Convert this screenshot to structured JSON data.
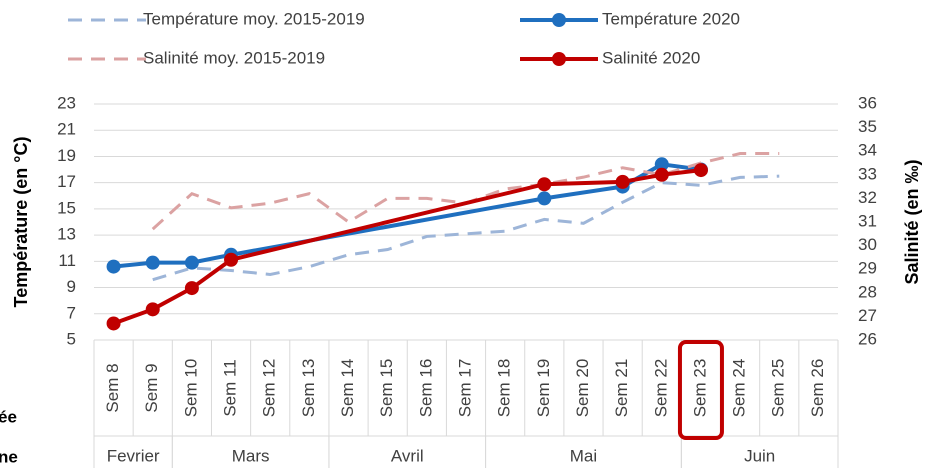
{
  "chart_data": {
    "type": "line",
    "categories": [
      "Sem 8",
      "Sem 9",
      "Sem 10",
      "Sem 11",
      "Sem 12",
      "Sem 13",
      "Sem 14",
      "Sem 15",
      "Sem 16",
      "Sem 17",
      "Sem 18",
      "Sem 19",
      "Sem 20",
      "Sem 21",
      "Sem 22",
      "Sem 23",
      "Sem 24",
      "Sem 25",
      "Sem 26"
    ],
    "groups": [
      {
        "label": "Fevrier",
        "span": 2
      },
      {
        "label": "Mars",
        "span": 4
      },
      {
        "label": "Avril",
        "span": 4
      },
      {
        "label": "Mai",
        "span": 5
      },
      {
        "label": "Juin",
        "span": 4
      }
    ],
    "ylabel": "Température (en °C)",
    "y2label": "Salinité (en ‰)",
    "ylim": [
      5,
      23
    ],
    "yticks": [
      5,
      7,
      9,
      11,
      13,
      15,
      17,
      19,
      21,
      23
    ],
    "y2lim": [
      26,
      36
    ],
    "y2ticks": [
      26,
      27,
      28,
      29,
      30,
      31,
      32,
      33,
      34,
      35,
      36
    ],
    "grid": true,
    "span_gaps": true,
    "legend": "top",
    "highlight": "Sem 23",
    "annotations": [
      "ée",
      "ne"
    ],
    "series": [
      {
        "name": "Température moy. 2015-2019",
        "color": "#9db5d8",
        "dashed": true,
        "markers": false,
        "values": [
          null,
          9.6,
          10.5,
          10.3,
          10.0,
          10.6,
          11.5,
          11.9,
          12.9,
          13.1,
          13.3,
          14.2,
          13.9,
          15.5,
          17.0,
          16.8,
          17.4,
          17.5,
          null
        ]
      },
      {
        "name": "Température 2020",
        "color": "#1f6fbf",
        "dashed": false,
        "markers": true,
        "values": [
          10.6,
          10.9,
          10.9,
          11.5,
          null,
          null,
          null,
          null,
          null,
          null,
          null,
          15.8,
          null,
          16.7,
          18.4,
          18.0,
          null,
          null,
          null
        ]
      },
      {
        "name": "Salinité moy. 2015-2019",
        "color": "#dba2a2",
        "dashed": true,
        "markers": false,
        "axis": "y2",
        "values": [
          null,
          30.7,
          32.2,
          31.6,
          31.8,
          32.2,
          31.0,
          32.0,
          32.0,
          31.8,
          32.4,
          32.6,
          32.9,
          33.3,
          33.0,
          33.5,
          33.9,
          33.9,
          null
        ]
      },
      {
        "name": "Salinité 2020",
        "color": "#c00000",
        "dashed": false,
        "markers": true,
        "axis": "y2",
        "values": [
          26.7,
          27.3,
          28.2,
          29.4,
          null,
          null,
          null,
          null,
          null,
          null,
          null,
          32.6,
          null,
          32.7,
          33.0,
          33.2,
          null,
          null,
          null
        ]
      }
    ]
  }
}
